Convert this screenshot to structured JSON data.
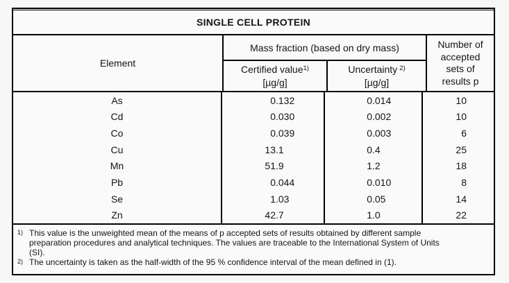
{
  "page": {
    "background": "#f7f7f7",
    "table_background": "#fafafa",
    "border_color": "#000000",
    "text_color": "#141414"
  },
  "table": {
    "title": "SINGLE CELL PROTEIN",
    "header": {
      "element_label": "Element",
      "mass_fraction_label": "Mass fraction (based on dry mass)",
      "certified": {
        "label": "Certified value",
        "sup": "1)",
        "unit": "[µg/g]"
      },
      "uncertainty": {
        "label": "Uncertainty",
        "sup": "2)",
        "unit": "[µg/g]"
      },
      "accepted_lines": [
        "Number of",
        "accepted",
        "sets of",
        "results p"
      ]
    },
    "rows": [
      {
        "element": "As",
        "certified": "0.132",
        "uncertainty": "0.014",
        "p": "10"
      },
      {
        "element": "Cd",
        "certified": "0.030",
        "uncertainty": "0.002",
        "p": "10"
      },
      {
        "element": "Co",
        "certified": "0.039",
        "uncertainty": "0.003",
        "p": "6"
      },
      {
        "element": "Cu",
        "certified": "13.1",
        "uncertainty": "0.4",
        "p": "25"
      },
      {
        "element": "Mn",
        "certified": "51.9",
        "uncertainty": "1.2",
        "p": "18"
      },
      {
        "element": "Pb",
        "certified": "0.044",
        "uncertainty": "0.010",
        "p": "8"
      },
      {
        "element": "Se",
        "certified": "1.03",
        "uncertainty": "0.05",
        "p": "14"
      },
      {
        "element": "Zn",
        "certified": "42.7",
        "uncertainty": "1.0",
        "p": "22"
      }
    ]
  },
  "footnotes": [
    {
      "marker": "1)",
      "lines": [
        "This value is the unweighted mean of the means of p accepted sets of results obtained by different sample",
        "preparation procedures and analytical techniques. The values are traceable to the International System of Units",
        "(SI)."
      ]
    },
    {
      "marker": "2)",
      "lines": [
        "The uncertainty is taken as the half-width of the 95 % confidence interval of the mean defined in (1)."
      ]
    }
  ]
}
